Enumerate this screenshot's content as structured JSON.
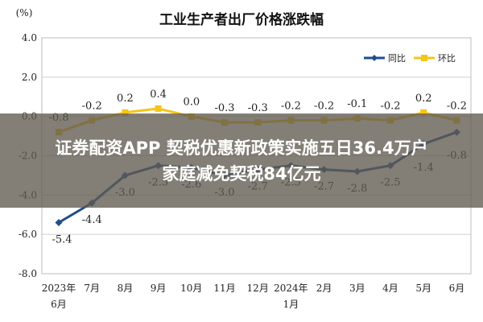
{
  "chart_data": {
    "type": "line",
    "title": "工业生产者出厂价格涨跌幅",
    "unit": "(%)",
    "categories": [
      "2023年\n6月",
      "7月",
      "8月",
      "9月",
      "10月",
      "11月",
      "12月",
      "2024年\n1月",
      "2月",
      "3月",
      "4月",
      "5月",
      "6月"
    ],
    "ylim": [
      -8.0,
      4.0
    ],
    "yticks": [
      "4.0",
      "2.0",
      "0.0",
      "-2.0",
      "-4.0",
      "-6.0",
      "-8.0"
    ],
    "grid": true,
    "legend_position": "top-right",
    "series": [
      {
        "name": "同比",
        "color": "#1f4e8c",
        "values": [
          -5.4,
          -4.4,
          -3.0,
          -2.5,
          -2.6,
          -3.0,
          -2.7,
          -2.5,
          -2.7,
          -2.8,
          -2.5,
          -1.4,
          -0.8
        ],
        "labels": [
          "-5.4",
          "-4.4",
          "-3.0",
          "-2.5",
          "-2.6",
          "-3.0",
          "-2.7",
          "-2.5",
          "-2.7",
          "-2.8",
          "-2.5",
          "-1.4",
          "-0.8"
        ]
      },
      {
        "name": "环比",
        "color": "#f5c518",
        "values": [
          -0.8,
          -0.2,
          0.2,
          0.4,
          0.0,
          -0.3,
          -0.3,
          -0.2,
          -0.2,
          -0.1,
          -0.2,
          0.2,
          -0.2
        ],
        "labels": [
          "-0.8",
          "-0.2",
          "0.2",
          "0.4",
          "0.0",
          "-0.3",
          "-0.3",
          "-0.2",
          "-0.2",
          "-0.1",
          "-0.2",
          "0.2",
          "-0.2"
        ]
      }
    ]
  },
  "banner": {
    "line1": "证券配资APP 契税优惠新政策实施五日36.4万户",
    "line2": "家庭减免契税84亿元"
  }
}
